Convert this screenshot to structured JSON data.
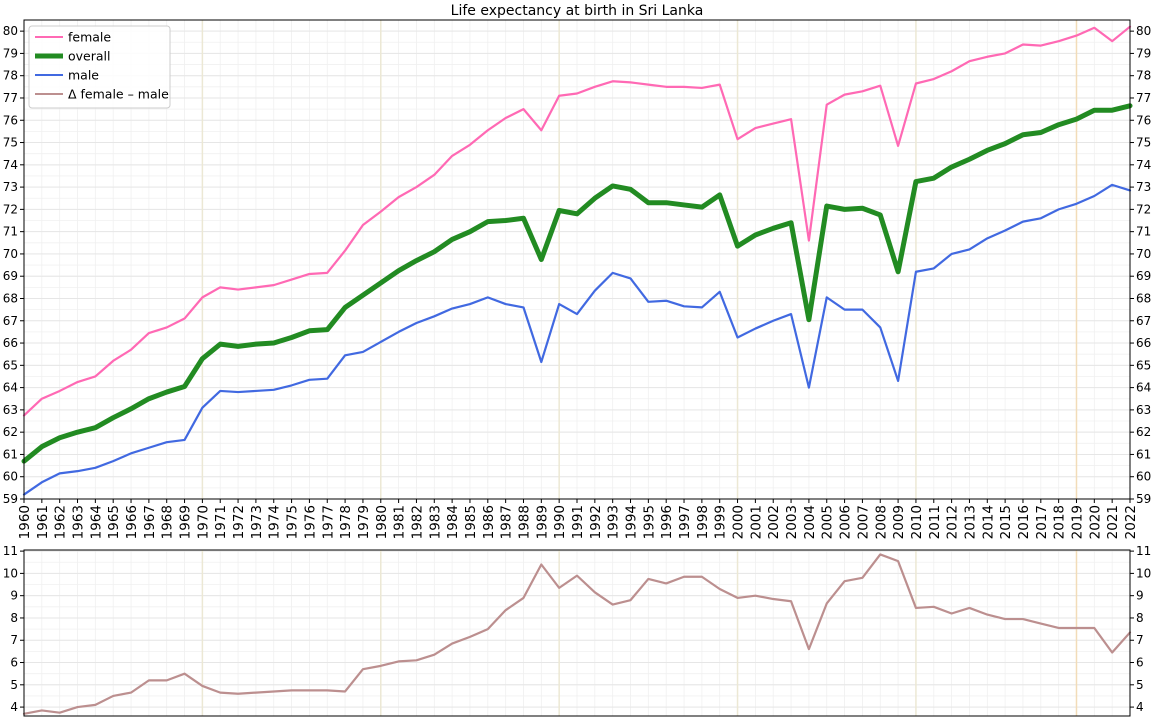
{
  "chart_data": [
    {
      "type": "line",
      "title": "Life expectancy at birth in Sri Lanka",
      "xlabel": "",
      "ylabel": "",
      "x": [
        1960,
        1961,
        1962,
        1963,
        1964,
        1965,
        1966,
        1967,
        1968,
        1969,
        1970,
        1971,
        1972,
        1973,
        1974,
        1975,
        1976,
        1977,
        1978,
        1979,
        1980,
        1981,
        1982,
        1983,
        1984,
        1985,
        1986,
        1987,
        1988,
        1989,
        1990,
        1991,
        1992,
        1993,
        1994,
        1995,
        1996,
        1997,
        1998,
        1999,
        2000,
        2001,
        2002,
        2003,
        2004,
        2005,
        2006,
        2007,
        2008,
        2009,
        2010,
        2011,
        2012,
        2013,
        2014,
        2015,
        2016,
        2017,
        2018,
        2019,
        2020,
        2021,
        2022
      ],
      "xlim": [
        1960,
        2022
      ],
      "ylim": [
        59,
        80.5
      ],
      "yticks": [
        59,
        60,
        61,
        62,
        63,
        64,
        65,
        66,
        67,
        68,
        69,
        70,
        71,
        72,
        73,
        74,
        75,
        76,
        77,
        78,
        79,
        80
      ],
      "grid": true,
      "legend_position": "top-left",
      "series": [
        {
          "name": "female",
          "color": "#ff69b4",
          "values": [
            62.75,
            63.5,
            63.85,
            64.25,
            64.5,
            65.2,
            65.7,
            66.45,
            66.7,
            67.1,
            68.05,
            68.5,
            68.4,
            68.5,
            68.6,
            68.85,
            69.1,
            69.15,
            70.15,
            71.3,
            71.9,
            72.55,
            73.0,
            73.55,
            74.4,
            74.9,
            75.55,
            76.1,
            76.5,
            75.55,
            77.1,
            77.2,
            77.5,
            77.75,
            77.7,
            77.6,
            77.5,
            77.5,
            77.45,
            77.6,
            75.15,
            75.65,
            75.85,
            76.05,
            70.6,
            76.7,
            77.15,
            77.3,
            77.55,
            74.85,
            77.65,
            77.85,
            78.2,
            78.65,
            78.85,
            79.0,
            79.4,
            79.35,
            79.55,
            79.8,
            80.15,
            79.55,
            80.2
          ]
        },
        {
          "name": "overall",
          "color": "#228b22",
          "values": [
            60.7,
            61.35,
            61.75,
            62.0,
            62.2,
            62.65,
            63.05,
            63.5,
            63.8,
            64.05,
            65.3,
            65.95,
            65.85,
            65.95,
            66.0,
            66.25,
            66.55,
            66.6,
            67.6,
            68.15,
            68.7,
            69.25,
            69.7,
            70.1,
            70.65,
            71.0,
            71.45,
            71.5,
            71.6,
            69.75,
            71.95,
            71.8,
            72.5,
            73.05,
            72.9,
            72.3,
            72.3,
            72.2,
            72.1,
            72.65,
            70.35,
            70.85,
            71.15,
            71.4,
            67.05,
            72.15,
            72.0,
            72.05,
            71.75,
            69.2,
            73.25,
            73.4,
            73.9,
            74.25,
            74.65,
            74.95,
            75.35,
            75.45,
            75.8,
            76.05,
            76.45,
            76.45,
            76.65
          ]
        },
        {
          "name": "male",
          "color": "#4169e1",
          "values": [
            59.2,
            59.75,
            60.15,
            60.25,
            60.4,
            60.7,
            61.05,
            61.3,
            61.55,
            61.65,
            63.1,
            63.85,
            63.8,
            63.85,
            63.9,
            64.1,
            64.35,
            64.4,
            65.45,
            65.6,
            66.05,
            66.5,
            66.9,
            67.2,
            67.55,
            67.75,
            68.05,
            67.75,
            67.6,
            65.15,
            67.75,
            67.3,
            68.35,
            69.15,
            68.9,
            67.85,
            67.9,
            67.65,
            67.6,
            68.3,
            66.25,
            66.65,
            67.0,
            67.3,
            64.0,
            68.05,
            67.5,
            67.5,
            66.7,
            64.3,
            69.2,
            69.35,
            70.0,
            70.2,
            70.7,
            71.05,
            71.45,
            71.6,
            72.0,
            72.25,
            72.6,
            73.1,
            72.85
          ]
        }
      ]
    },
    {
      "type": "line",
      "xlabel": "",
      "ylabel": "",
      "xlim": [
        1960,
        2022
      ],
      "ylim": [
        3.6,
        11.05
      ],
      "yticks": [
        4,
        5,
        6,
        7,
        8,
        9,
        10,
        11
      ],
      "grid": true,
      "series": [
        {
          "name": "Δ female – male",
          "color": "#bc8f8f",
          "values": [
            3.7,
            3.85,
            3.75,
            4.0,
            4.1,
            4.5,
            4.65,
            5.2,
            5.2,
            5.5,
            4.95,
            4.65,
            4.6,
            4.65,
            4.7,
            4.75,
            4.75,
            4.75,
            4.7,
            5.7,
            5.85,
            6.05,
            6.1,
            6.35,
            6.85,
            7.15,
            7.5,
            8.35,
            8.9,
            10.4,
            9.35,
            9.9,
            9.15,
            8.6,
            8.8,
            9.75,
            9.55,
            9.85,
            9.85,
            9.3,
            8.9,
            9.0,
            8.85,
            8.75,
            6.6,
            8.65,
            9.65,
            9.8,
            10.85,
            10.55,
            8.45,
            8.5,
            8.2,
            8.45,
            8.15,
            7.95,
            7.95,
            7.75,
            7.55,
            7.55,
            7.55,
            6.45,
            7.35
          ]
        }
      ]
    }
  ]
}
